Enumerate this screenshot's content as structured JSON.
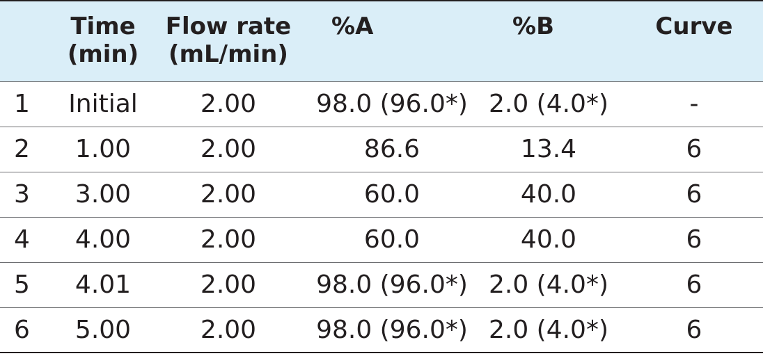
{
  "table": {
    "colors": {
      "header_background": "#daeef8",
      "text": "#231f20",
      "rule": "#6d6e71"
    },
    "header": {
      "time_line1": "Time",
      "time_line2": "(min)",
      "flow_line1": "Flow rate",
      "flow_line2": "(mL/min)",
      "pct_a": "%A",
      "pct_b": "%B",
      "curve": "Curve"
    },
    "rows": [
      {
        "step": "1",
        "time": "Initial",
        "flow": "2.00",
        "a": "98.0 (96.0*)",
        "b": "2.0 (4.0*)",
        "curve": "-"
      },
      {
        "step": "2",
        "time": "1.00",
        "flow": "2.00",
        "a": "86.6",
        "b": "13.4",
        "curve": "6"
      },
      {
        "step": "3",
        "time": "3.00",
        "flow": "2.00",
        "a": "60.0",
        "b": "40.0",
        "curve": "6"
      },
      {
        "step": "4",
        "time": "4.00",
        "flow": "2.00",
        "a": "60.0",
        "b": "40.0",
        "curve": "6"
      },
      {
        "step": "5",
        "time": "4.01",
        "flow": "2.00",
        "a": "98.0 (96.0*)",
        "b": "2.0 (4.0*)",
        "curve": "6"
      },
      {
        "step": "6",
        "time": "5.00",
        "flow": "2.00",
        "a": "98.0 (96.0*)",
        "b": "2.0 (4.0*)",
        "curve": "6"
      }
    ]
  }
}
